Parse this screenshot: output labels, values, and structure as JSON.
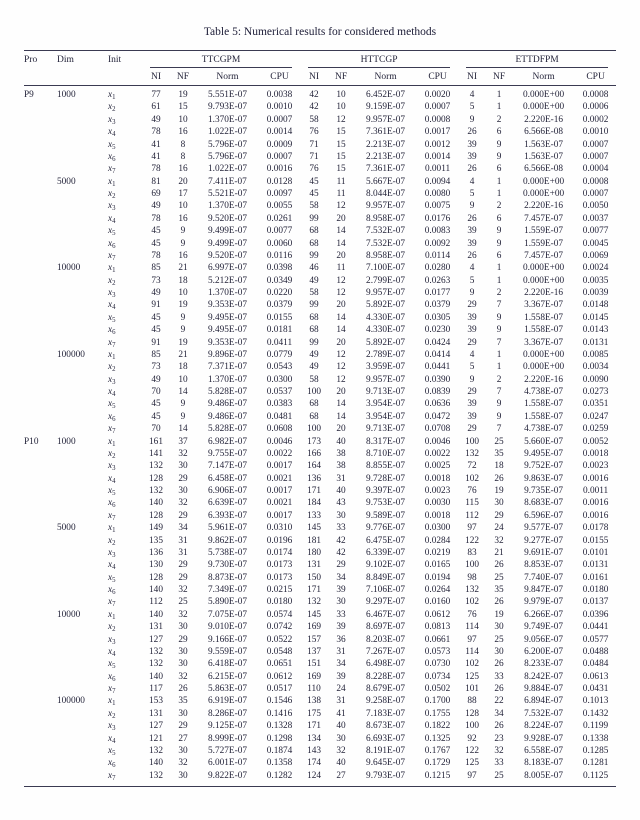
{
  "caption": "Table 5: Numerical results for considered methods",
  "table": {
    "columns": {
      "pro": "Pro",
      "dim": "Dim",
      "init": "Init"
    },
    "groups": [
      {
        "name": "TTCGPM",
        "sub": [
          "NI",
          "NF",
          "Norm",
          "CPU"
        ]
      },
      {
        "name": "HTTCGP",
        "sub": [
          "NI",
          "NF",
          "Norm",
          "CPU"
        ]
      },
      {
        "name": "ETTDFPM",
        "sub": [
          "NI",
          "NF",
          "Norm",
          "CPU"
        ]
      }
    ],
    "rows": [
      {
        "pro": "P9",
        "dim": "1000",
        "init": "x1",
        "cells": [
          "77",
          "19",
          "5.551E-07",
          "0.0038",
          "42",
          "10",
          "6.452E-07",
          "0.0020",
          "4",
          "1",
          "0.000E+00",
          "0.0008"
        ]
      },
      {
        "pro": "",
        "dim": "",
        "init": "x2",
        "cells": [
          "61",
          "15",
          "9.793E-07",
          "0.0010",
          "42",
          "10",
          "9.159E-07",
          "0.0007",
          "5",
          "1",
          "0.000E+00",
          "0.0006"
        ]
      },
      {
        "pro": "",
        "dim": "",
        "init": "x3",
        "cells": [
          "49",
          "10",
          "1.370E-07",
          "0.0007",
          "58",
          "12",
          "9.957E-07",
          "0.0008",
          "9",
          "2",
          "2.220E-16",
          "0.0002"
        ]
      },
      {
        "pro": "",
        "dim": "",
        "init": "x4",
        "cells": [
          "78",
          "16",
          "1.022E-07",
          "0.0014",
          "76",
          "15",
          "7.361E-07",
          "0.0017",
          "26",
          "6",
          "6.566E-08",
          "0.0010"
        ]
      },
      {
        "pro": "",
        "dim": "",
        "init": "x5",
        "cells": [
          "41",
          "8",
          "5.796E-07",
          "0.0009",
          "71",
          "15",
          "2.213E-07",
          "0.0012",
          "39",
          "9",
          "1.563E-07",
          "0.0007"
        ]
      },
      {
        "pro": "",
        "dim": "",
        "init": "x6",
        "cells": [
          "41",
          "8",
          "5.796E-07",
          "0.0007",
          "71",
          "15",
          "2.213E-07",
          "0.0014",
          "39",
          "9",
          "1.563E-07",
          "0.0007"
        ]
      },
      {
        "pro": "",
        "dim": "",
        "init": "x7",
        "cells": [
          "78",
          "16",
          "1.022E-07",
          "0.0016",
          "76",
          "15",
          "7.361E-07",
          "0.0011",
          "26",
          "6",
          "6.566E-08",
          "0.0004"
        ]
      },
      {
        "pro": "",
        "dim": "5000",
        "init": "x1",
        "cells": [
          "81",
          "20",
          "7.411E-07",
          "0.0128",
          "45",
          "11",
          "5.667E-07",
          "0.0094",
          "4",
          "1",
          "0.000E+00",
          "0.0008"
        ]
      },
      {
        "pro": "",
        "dim": "",
        "init": "x2",
        "cells": [
          "69",
          "17",
          "5.521E-07",
          "0.0097",
          "45",
          "11",
          "8.044E-07",
          "0.0080",
          "5",
          "1",
          "0.000E+00",
          "0.0007"
        ]
      },
      {
        "pro": "",
        "dim": "",
        "init": "x3",
        "cells": [
          "49",
          "10",
          "1.370E-07",
          "0.0055",
          "58",
          "12",
          "9.957E-07",
          "0.0075",
          "9",
          "2",
          "2.220E-16",
          "0.0050"
        ]
      },
      {
        "pro": "",
        "dim": "",
        "init": "x4",
        "cells": [
          "78",
          "16",
          "9.520E-07",
          "0.0261",
          "99",
          "20",
          "8.958E-07",
          "0.0176",
          "26",
          "6",
          "7.457E-07",
          "0.0037"
        ]
      },
      {
        "pro": "",
        "dim": "",
        "init": "x5",
        "cells": [
          "45",
          "9",
          "9.499E-07",
          "0.0077",
          "68",
          "14",
          "7.532E-07",
          "0.0083",
          "39",
          "9",
          "1.559E-07",
          "0.0077"
        ]
      },
      {
        "pro": "",
        "dim": "",
        "init": "x6",
        "cells": [
          "45",
          "9",
          "9.499E-07",
          "0.0060",
          "68",
          "14",
          "7.532E-07",
          "0.0092",
          "39",
          "9",
          "1.559E-07",
          "0.0045"
        ]
      },
      {
        "pro": "",
        "dim": "",
        "init": "x7",
        "cells": [
          "78",
          "16",
          "9.520E-07",
          "0.0116",
          "99",
          "20",
          "8.958E-07",
          "0.0114",
          "26",
          "6",
          "7.457E-07",
          "0.0069"
        ]
      },
      {
        "pro": "",
        "dim": "10000",
        "init": "x1",
        "cells": [
          "85",
          "21",
          "6.997E-07",
          "0.0398",
          "46",
          "11",
          "7.100E-07",
          "0.0280",
          "4",
          "1",
          "0.000E+00",
          "0.0024"
        ]
      },
      {
        "pro": "",
        "dim": "",
        "init": "x2",
        "cells": [
          "73",
          "18",
          "5.212E-07",
          "0.0349",
          "49",
          "12",
          "2.799E-07",
          "0.0263",
          "5",
          "1",
          "0.000E+00",
          "0.0035"
        ]
      },
      {
        "pro": "",
        "dim": "",
        "init": "x3",
        "cells": [
          "49",
          "10",
          "1.370E-07",
          "0.0220",
          "58",
          "12",
          "9.957E-07",
          "0.0177",
          "9",
          "2",
          "2.220E-16",
          "0.0039"
        ]
      },
      {
        "pro": "",
        "dim": "",
        "init": "x4",
        "cells": [
          "91",
          "19",
          "9.353E-07",
          "0.0379",
          "99",
          "20",
          "5.892E-07",
          "0.0379",
          "29",
          "7",
          "3.367E-07",
          "0.0148"
        ]
      },
      {
        "pro": "",
        "dim": "",
        "init": "x5",
        "cells": [
          "45",
          "9",
          "9.495E-07",
          "0.0155",
          "68",
          "14",
          "4.330E-07",
          "0.0305",
          "39",
          "9",
          "1.558E-07",
          "0.0145"
        ]
      },
      {
        "pro": "",
        "dim": "",
        "init": "x6",
        "cells": [
          "45",
          "9",
          "9.495E-07",
          "0.0181",
          "68",
          "14",
          "4.330E-07",
          "0.0230",
          "39",
          "9",
          "1.558E-07",
          "0.0143"
        ]
      },
      {
        "pro": "",
        "dim": "",
        "init": "x7",
        "cells": [
          "91",
          "19",
          "9.353E-07",
          "0.0411",
          "99",
          "20",
          "5.892E-07",
          "0.0424",
          "29",
          "7",
          "3.367E-07",
          "0.0131"
        ]
      },
      {
        "pro": "",
        "dim": "100000",
        "init": "x1",
        "cells": [
          "85",
          "21",
          "9.896E-07",
          "0.0779",
          "49",
          "12",
          "2.789E-07",
          "0.0414",
          "4",
          "1",
          "0.000E+00",
          "0.0085"
        ]
      },
      {
        "pro": "",
        "dim": "",
        "init": "x2",
        "cells": [
          "73",
          "18",
          "7.371E-07",
          "0.0543",
          "49",
          "12",
          "3.959E-07",
          "0.0441",
          "5",
          "1",
          "0.000E+00",
          "0.0034"
        ]
      },
      {
        "pro": "",
        "dim": "",
        "init": "x3",
        "cells": [
          "49",
          "10",
          "1.370E-07",
          "0.0300",
          "58",
          "12",
          "9.957E-07",
          "0.0390",
          "9",
          "2",
          "2.220E-16",
          "0.0090"
        ]
      },
      {
        "pro": "",
        "dim": "",
        "init": "x4",
        "cells": [
          "70",
          "14",
          "5.828E-07",
          "0.0537",
          "100",
          "20",
          "9.713E-07",
          "0.0839",
          "29",
          "7",
          "4.738E-07",
          "0.0273"
        ]
      },
      {
        "pro": "",
        "dim": "",
        "init": "x5",
        "cells": [
          "45",
          "9",
          "9.486E-07",
          "0.0383",
          "68",
          "14",
          "3.954E-07",
          "0.0636",
          "39",
          "9",
          "1.558E-07",
          "0.0351"
        ]
      },
      {
        "pro": "",
        "dim": "",
        "init": "x6",
        "cells": [
          "45",
          "9",
          "9.486E-07",
          "0.0481",
          "68",
          "14",
          "3.954E-07",
          "0.0472",
          "39",
          "9",
          "1.558E-07",
          "0.0247"
        ]
      },
      {
        "pro": "",
        "dim": "",
        "init": "x7",
        "cells": [
          "70",
          "14",
          "5.828E-07",
          "0.0608",
          "100",
          "20",
          "9.713E-07",
          "0.0708",
          "29",
          "7",
          "4.738E-07",
          "0.0259"
        ]
      },
      {
        "pro": "P10",
        "dim": "1000",
        "init": "x1",
        "cells": [
          "161",
          "37",
          "6.982E-07",
          "0.0046",
          "173",
          "40",
          "8.317E-07",
          "0.0046",
          "100",
          "25",
          "5.660E-07",
          "0.0052"
        ]
      },
      {
        "pro": "",
        "dim": "",
        "init": "x2",
        "cells": [
          "141",
          "32",
          "9.755E-07",
          "0.0022",
          "166",
          "38",
          "8.710E-07",
          "0.0022",
          "132",
          "35",
          "9.495E-07",
          "0.0018"
        ]
      },
      {
        "pro": "",
        "dim": "",
        "init": "x3",
        "cells": [
          "132",
          "30",
          "7.147E-07",
          "0.0017",
          "164",
          "38",
          "8.855E-07",
          "0.0025",
          "72",
          "18",
          "9.752E-07",
          "0.0023"
        ]
      },
      {
        "pro": "",
        "dim": "",
        "init": "x4",
        "cells": [
          "128",
          "29",
          "6.458E-07",
          "0.0021",
          "136",
          "31",
          "9.728E-07",
          "0.0018",
          "102",
          "26",
          "9.863E-07",
          "0.0016"
        ]
      },
      {
        "pro": "",
        "dim": "",
        "init": "x5",
        "cells": [
          "132",
          "30",
          "6.906E-07",
          "0.0017",
          "171",
          "40",
          "9.397E-07",
          "0.0023",
          "76",
          "19",
          "9.735E-07",
          "0.0011"
        ]
      },
      {
        "pro": "",
        "dim": "",
        "init": "x6",
        "cells": [
          "140",
          "32",
          "6.639E-07",
          "0.0021",
          "184",
          "43",
          "9.753E-07",
          "0.0030",
          "115",
          "30",
          "8.683E-07",
          "0.0016"
        ]
      },
      {
        "pro": "",
        "dim": "",
        "init": "x7",
        "cells": [
          "128",
          "29",
          "6.393E-07",
          "0.0017",
          "133",
          "30",
          "9.589E-07",
          "0.0018",
          "112",
          "29",
          "6.596E-07",
          "0.0016"
        ]
      },
      {
        "pro": "",
        "dim": "5000",
        "init": "x1",
        "cells": [
          "149",
          "34",
          "5.961E-07",
          "0.0310",
          "145",
          "33",
          "9.776E-07",
          "0.0300",
          "97",
          "24",
          "9.577E-07",
          "0.0178"
        ]
      },
      {
        "pro": "",
        "dim": "",
        "init": "x2",
        "cells": [
          "135",
          "31",
          "9.862E-07",
          "0.0196",
          "181",
          "42",
          "6.475E-07",
          "0.0284",
          "122",
          "32",
          "9.277E-07",
          "0.0155"
        ]
      },
      {
        "pro": "",
        "dim": "",
        "init": "x3",
        "cells": [
          "136",
          "31",
          "5.738E-07",
          "0.0174",
          "180",
          "42",
          "6.339E-07",
          "0.0219",
          "83",
          "21",
          "9.691E-07",
          "0.0101"
        ]
      },
      {
        "pro": "",
        "dim": "",
        "init": "x4",
        "cells": [
          "130",
          "29",
          "9.730E-07",
          "0.0173",
          "131",
          "29",
          "9.102E-07",
          "0.0165",
          "100",
          "26",
          "8.853E-07",
          "0.0131"
        ]
      },
      {
        "pro": "",
        "dim": "",
        "init": "x5",
        "cells": [
          "128",
          "29",
          "8.873E-07",
          "0.0173",
          "150",
          "34",
          "8.849E-07",
          "0.0194",
          "98",
          "25",
          "7.740E-07",
          "0.0161"
        ]
      },
      {
        "pro": "",
        "dim": "",
        "init": "x6",
        "cells": [
          "140",
          "32",
          "7.349E-07",
          "0.0215",
          "171",
          "39",
          "7.106E-07",
          "0.0264",
          "132",
          "35",
          "9.847E-07",
          "0.0180"
        ]
      },
      {
        "pro": "",
        "dim": "",
        "init": "x7",
        "cells": [
          "112",
          "25",
          "5.890E-07",
          "0.0180",
          "132",
          "30",
          "9.297E-07",
          "0.0160",
          "102",
          "26",
          "9.979E-07",
          "0.0137"
        ]
      },
      {
        "pro": "",
        "dim": "10000",
        "init": "x1",
        "cells": [
          "140",
          "32",
          "7.075E-07",
          "0.0574",
          "145",
          "33",
          "6.467E-07",
          "0.0612",
          "76",
          "19",
          "6.266E-07",
          "0.0396"
        ]
      },
      {
        "pro": "",
        "dim": "",
        "init": "x2",
        "cells": [
          "131",
          "30",
          "9.010E-07",
          "0.0742",
          "169",
          "39",
          "8.697E-07",
          "0.0813",
          "114",
          "30",
          "9.749E-07",
          "0.0441"
        ]
      },
      {
        "pro": "",
        "dim": "",
        "init": "x3",
        "cells": [
          "127",
          "29",
          "9.166E-07",
          "0.0522",
          "157",
          "36",
          "8.203E-07",
          "0.0661",
          "97",
          "25",
          "9.056E-07",
          "0.0577"
        ]
      },
      {
        "pro": "",
        "dim": "",
        "init": "x4",
        "cells": [
          "132",
          "30",
          "9.559E-07",
          "0.0548",
          "137",
          "31",
          "7.267E-07",
          "0.0573",
          "114",
          "30",
          "6.200E-07",
          "0.0488"
        ]
      },
      {
        "pro": "",
        "dim": "",
        "init": "x5",
        "cells": [
          "132",
          "30",
          "6.418E-07",
          "0.0651",
          "151",
          "34",
          "6.498E-07",
          "0.0730",
          "102",
          "26",
          "8.233E-07",
          "0.0484"
        ]
      },
      {
        "pro": "",
        "dim": "",
        "init": "x6",
        "cells": [
          "140",
          "32",
          "6.215E-07",
          "0.0612",
          "169",
          "39",
          "8.228E-07",
          "0.0734",
          "125",
          "33",
          "8.242E-07",
          "0.0613"
        ]
      },
      {
        "pro": "",
        "dim": "",
        "init": "x7",
        "cells": [
          "117",
          "26",
          "5.863E-07",
          "0.0517",
          "110",
          "24",
          "8.679E-07",
          "0.0502",
          "101",
          "26",
          "9.884E-07",
          "0.0431"
        ]
      },
      {
        "pro": "",
        "dim": "100000",
        "init": "x1",
        "cells": [
          "153",
          "35",
          "6.919E-07",
          "0.1546",
          "138",
          "31",
          "9.258E-07",
          "0.1700",
          "88",
          "22",
          "6.894E-07",
          "0.1013"
        ]
      },
      {
        "pro": "",
        "dim": "",
        "init": "x2",
        "cells": [
          "131",
          "30",
          "8.286E-07",
          "0.1416",
          "175",
          "41",
          "7.183E-07",
          "0.1755",
          "128",
          "34",
          "7.532E-07",
          "0.1432"
        ]
      },
      {
        "pro": "",
        "dim": "",
        "init": "x3",
        "cells": [
          "127",
          "29",
          "9.125E-07",
          "0.1328",
          "171",
          "40",
          "8.673E-07",
          "0.1822",
          "100",
          "26",
          "8.224E-07",
          "0.1199"
        ]
      },
      {
        "pro": "",
        "dim": "",
        "init": "x4",
        "cells": [
          "121",
          "27",
          "8.999E-07",
          "0.1298",
          "134",
          "30",
          "6.693E-07",
          "0.1325",
          "92",
          "23",
          "9.928E-07",
          "0.1338"
        ]
      },
      {
        "pro": "",
        "dim": "",
        "init": "x5",
        "cells": [
          "132",
          "30",
          "5.727E-07",
          "0.1874",
          "143",
          "32",
          "8.191E-07",
          "0.1767",
          "122",
          "32",
          "6.558E-07",
          "0.1285"
        ]
      },
      {
        "pro": "",
        "dim": "",
        "init": "x6",
        "cells": [
          "140",
          "32",
          "6.001E-07",
          "0.1358",
          "174",
          "40",
          "9.645E-07",
          "0.1729",
          "125",
          "33",
          "8.183E-07",
          "0.1281"
        ]
      },
      {
        "pro": "",
        "dim": "",
        "init": "x7",
        "cells": [
          "132",
          "30",
          "9.822E-07",
          "0.1282",
          "124",
          "27",
          "9.793E-07",
          "0.1215",
          "97",
          "25",
          "8.005E-07",
          "0.1125"
        ]
      }
    ]
  }
}
